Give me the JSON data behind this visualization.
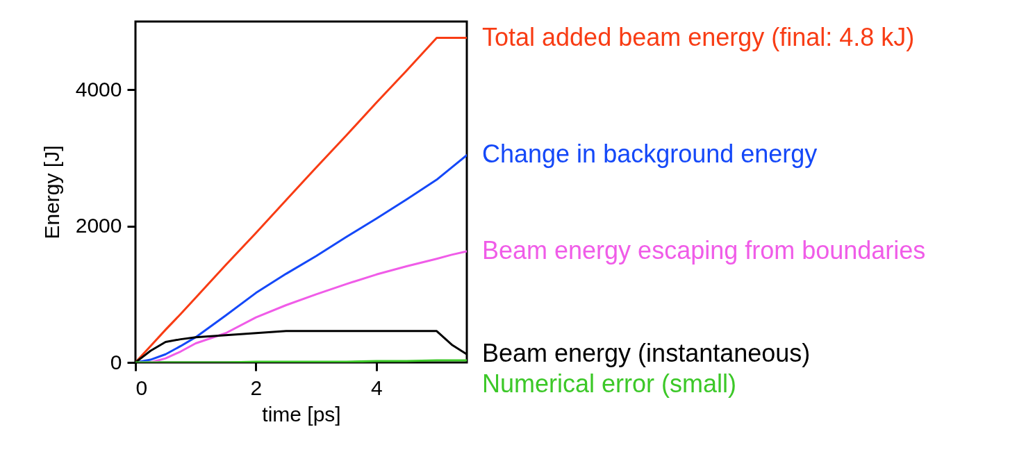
{
  "chart_data": {
    "type": "line",
    "xlabel": "time  [ps]",
    "ylabel": "Energy  [J]",
    "xlim": [
      0,
      5.5
    ],
    "ylim": [
      0,
      5000
    ],
    "xticks": [
      0,
      2,
      4
    ],
    "yticks": [
      0,
      2000,
      4000
    ],
    "grid": false,
    "legend": false,
    "x": [
      0,
      0.25,
      0.5,
      0.75,
      1,
      1.5,
      2,
      2.5,
      3,
      3.5,
      4,
      4.5,
      5,
      5.25,
      5.5
    ],
    "series": [
      {
        "name": "Total added beam energy (final: 4.8 kJ)",
        "color": "#f83c14",
        "values": [
          0,
          240,
          480,
          710,
          950,
          1430,
          1900,
          2380,
          2860,
          3330,
          3810,
          4280,
          4760,
          4760,
          4760
        ]
      },
      {
        "name": "Change in background energy",
        "color": "#1448f8",
        "values": [
          0,
          40,
          120,
          240,
          370,
          690,
          1020,
          1300,
          1560,
          1840,
          2110,
          2390,
          2680,
          2860,
          3040
        ]
      },
      {
        "name": "Beam energy escaping from boundaries",
        "color": "#f05ce8",
        "values": [
          0,
          0,
          60,
          160,
          280,
          430,
          660,
          840,
          1000,
          1150,
          1290,
          1410,
          1520,
          1580,
          1630
        ]
      },
      {
        "name": "Beam energy (instantaneous)",
        "color": "#000000",
        "values": [
          0,
          170,
          300,
          340,
          370,
          400,
          430,
          460,
          460,
          460,
          460,
          460,
          460,
          260,
          120
        ]
      },
      {
        "name": "Numerical error (small)",
        "color": "#3cc828",
        "values": [
          0,
          0,
          0,
          0,
          0,
          0,
          10,
          10,
          10,
          10,
          20,
          20,
          30,
          30,
          30
        ]
      }
    ]
  }
}
